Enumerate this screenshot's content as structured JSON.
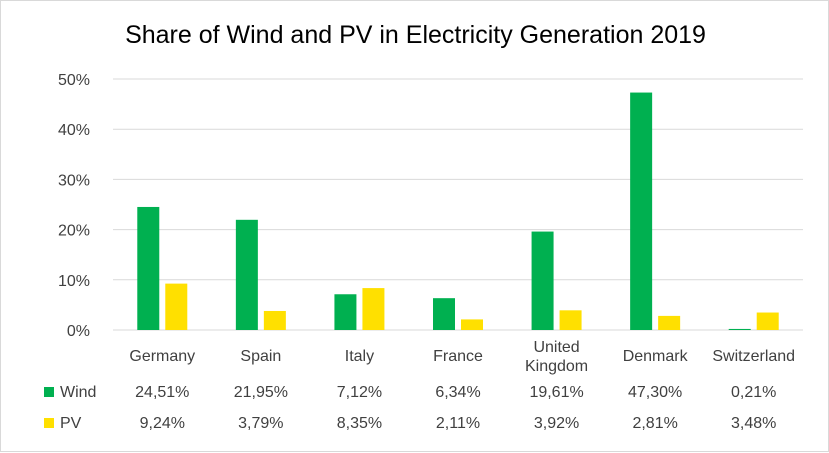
{
  "chart_data": {
    "type": "bar",
    "title": "Share of Wind and PV in Electricity Generation 2019",
    "categories": [
      [
        "Germany"
      ],
      [
        "Spain"
      ],
      [
        "Italy"
      ],
      [
        "France"
      ],
      [
        "United",
        "Kingdom"
      ],
      [
        "Denmark"
      ],
      [
        "Switzerland"
      ]
    ],
    "series": [
      {
        "name": "Wind",
        "color": "#00b050",
        "values": [
          24.51,
          21.95,
          7.12,
          6.34,
          19.61,
          47.3,
          0.21
        ],
        "labels": [
          "24,51%",
          "21,95%",
          "7,12%",
          "6,34%",
          "19,61%",
          "47,30%",
          "0,21%"
        ]
      },
      {
        "name": "PV",
        "color": "#ffe000",
        "values": [
          9.24,
          3.79,
          8.35,
          2.11,
          3.92,
          2.81,
          3.48
        ],
        "labels": [
          "9,24%",
          "3,79%",
          "8,35%",
          "2,11%",
          "3,92%",
          "2,81%",
          "3,48%"
        ]
      }
    ],
    "y_ticks": [
      "0%",
      "10%",
      "20%",
      "30%",
      "40%",
      "50%"
    ],
    "ylim": [
      0,
      50
    ],
    "grid": true,
    "legend": "data-table"
  }
}
